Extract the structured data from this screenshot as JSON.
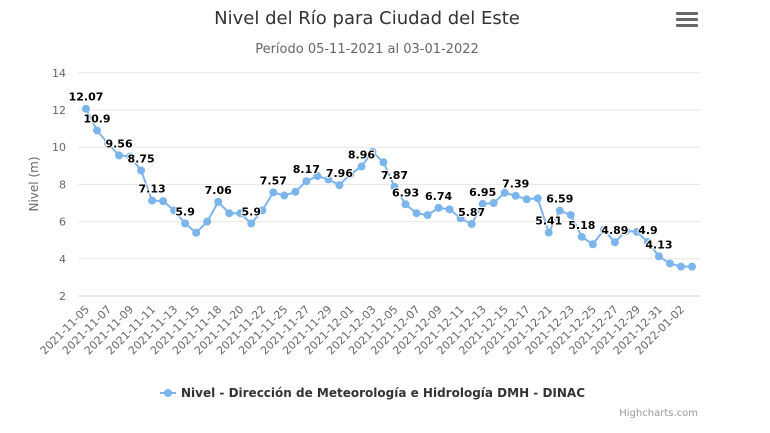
{
  "chart_data": {
    "type": "line",
    "title": "Nivel del Río para Ciudad del Este",
    "subtitle": "Período 05-11-2021 al 03-01-2022",
    "ylabel": "Nivel (m)",
    "xlabel": "",
    "ylim": [
      2,
      14
    ],
    "yticks": [
      2,
      4,
      6,
      8,
      10,
      12,
      14
    ],
    "grid": true,
    "legend_position": "bottom",
    "x_tick_labels": [
      "2021-11-05",
      "2021-11-07",
      "2021-11-09",
      "2021-11-11",
      "2021-11-13",
      "2021-11-15",
      "2021-11-18",
      "2021-11-20",
      "2021-11-22",
      "2021-11-25",
      "2021-11-27",
      "2021-11-29",
      "2021-12-01",
      "2021-12-03",
      "2021-12-05",
      "2021-12-07",
      "2021-12-09",
      "2021-12-11",
      "2021-12-13",
      "2021-12-15",
      "2021-12-17",
      "2021-12-21",
      "2021-12-23",
      "2021-12-25",
      "2021-12-27",
      "2021-12-29",
      "2021-12-31",
      "2022-01-02"
    ],
    "series": [
      {
        "name": "Nivel - Dirección de Meteorología e Hidrología DMH - DINAC",
        "color": "#7cb5ec",
        "values": [
          12.07,
          10.9,
          10.2,
          9.56,
          9.5,
          8.75,
          7.13,
          7.1,
          6.6,
          5.9,
          5.4,
          6.0,
          7.06,
          6.45,
          6.45,
          5.9,
          6.6,
          7.57,
          7.4,
          7.6,
          8.17,
          8.45,
          8.27,
          7.96,
          8.55,
          8.96,
          9.75,
          9.19,
          7.87,
          6.93,
          6.45,
          6.35,
          6.74,
          6.66,
          6.18,
          5.87,
          6.95,
          7.0,
          7.55,
          7.39,
          7.2,
          7.25,
          5.41,
          6.59,
          6.35,
          5.18,
          4.78,
          5.55,
          4.89,
          5.5,
          5.45,
          4.9,
          4.13,
          3.75,
          3.58,
          3.58
        ],
        "labeled_points": [
          0,
          1,
          3,
          5,
          6,
          9,
          12,
          15,
          17,
          20,
          23,
          25,
          28,
          29,
          32,
          35,
          36,
          39,
          42,
          43,
          45,
          48,
          51,
          52
        ]
      }
    ]
  },
  "menu_icon": "hamburger-menu-icon",
  "credits": "Highcharts.com"
}
